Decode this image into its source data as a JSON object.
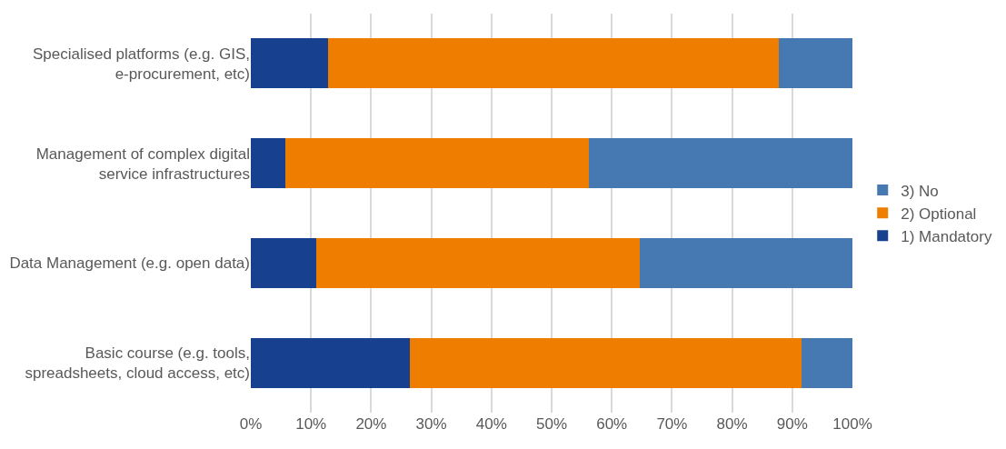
{
  "chart_data": {
    "type": "bar",
    "orientation": "horizontal",
    "stacked": true,
    "categories": [
      "Specialised platforms (e.g. GIS, e-procurement, etc)",
      "Management of complex digital service infrastructures",
      "Data Management (e.g. open data)",
      "Basic course (e.g. tools, spreadsheets, cloud access, etc)"
    ],
    "series": [
      {
        "name": "1) Mandatory",
        "color": "#17408f",
        "values": [
          12.8,
          5.7,
          10.8,
          26.4
        ]
      },
      {
        "name": "2) Optional",
        "color": "#ef7d00",
        "values": [
          75.0,
          50.5,
          53.8,
          65.2
        ]
      },
      {
        "name": "3) No",
        "color": "#4679b2",
        "values": [
          12.2,
          43.8,
          35.4,
          8.4
        ]
      }
    ],
    "xlim": [
      0,
      100
    ],
    "xticks": [
      {
        "value": 0,
        "label": "0%"
      },
      {
        "value": 10,
        "label": "10%"
      },
      {
        "value": 20,
        "label": "20%"
      },
      {
        "value": 30,
        "label": "30%"
      },
      {
        "value": 40,
        "label": "40%"
      },
      {
        "value": 50,
        "label": "50%"
      },
      {
        "value": 60,
        "label": "60%"
      },
      {
        "value": 70,
        "label": "70%"
      },
      {
        "value": 80,
        "label": "80%"
      },
      {
        "value": 90,
        "label": "90%"
      },
      {
        "value": 100,
        "label": "100%"
      }
    ],
    "grid": "x",
    "legend": "right"
  }
}
